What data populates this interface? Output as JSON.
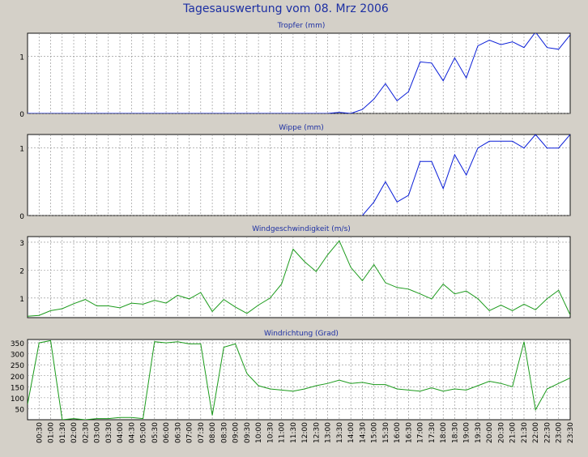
{
  "page_title": "Tagesauswertung vom 08. Mrz 2006",
  "colors": {
    "background": "#d4d0c8",
    "title_text": "#1c2fa3",
    "plot_background": "#ffffff",
    "blue_series": "#0a1ed8",
    "green_series": "#1a9a1a",
    "grid": "#8a8a8a",
    "frame": "#111111"
  },
  "x_time_labels": [
    "00:30",
    "01:00",
    "01:30",
    "02:00",
    "02:30",
    "03:00",
    "03:30",
    "04:00",
    "04:30",
    "05:00",
    "05:30",
    "06:00",
    "06:30",
    "07:00",
    "07:30",
    "08:00",
    "08:30",
    "09:00",
    "09:30",
    "10:00",
    "10:30",
    "11:00",
    "11:30",
    "12:00",
    "12:30",
    "13:00",
    "13:30",
    "14:00",
    "14:30",
    "15:00",
    "15:30",
    "16:00",
    "16:30",
    "17:00",
    "17:30",
    "18:00",
    "18:30",
    "19:00",
    "19:30",
    "20:00",
    "20:30",
    "21:00",
    "21:30",
    "22:00",
    "22:30",
    "23:00",
    "23:30"
  ],
  "chart_data": [
    {
      "type": "line",
      "title": "Tropfer (mm)",
      "color": "#0a1ed8",
      "ylim": [
        0,
        1.4
      ],
      "yticks": [
        0,
        1
      ],
      "x": [
        "00:00",
        "00:30",
        "01:00",
        "01:30",
        "02:00",
        "02:30",
        "03:00",
        "03:30",
        "04:00",
        "04:30",
        "05:00",
        "05:30",
        "06:00",
        "06:30",
        "07:00",
        "07:30",
        "08:00",
        "08:30",
        "09:00",
        "09:30",
        "10:00",
        "10:30",
        "11:00",
        "11:30",
        "12:00",
        "12:30",
        "13:00",
        "13:30",
        "14:00",
        "14:30",
        "15:00",
        "15:30",
        "16:00",
        "16:30",
        "17:00",
        "17:30",
        "18:00",
        "18:30",
        "19:00",
        "19:30",
        "20:00",
        "20:30",
        "21:00",
        "21:30",
        "22:00",
        "22:30",
        "23:00",
        "23:30"
      ],
      "values": [
        0,
        0,
        0,
        0,
        0,
        0,
        0,
        0,
        0,
        0,
        0,
        0,
        0,
        0,
        0,
        0,
        0,
        0,
        0,
        0,
        0,
        0,
        0,
        0,
        0,
        0,
        0,
        0.02,
        0,
        0.07,
        0.25,
        0.52,
        0.22,
        0.38,
        0.9,
        0.88,
        0.57,
        0.97,
        0.62,
        1.18,
        1.28,
        1.2,
        1.25,
        1.15,
        1.42,
        1.15,
        1.12,
        1.37
      ]
    },
    {
      "type": "line",
      "title": "Wippe (mm)",
      "color": "#0a1ed8",
      "ylim": [
        0,
        1.2
      ],
      "yticks": [
        0,
        1
      ],
      "x": [
        "00:00",
        "00:30",
        "01:00",
        "01:30",
        "02:00",
        "02:30",
        "03:00",
        "03:30",
        "04:00",
        "04:30",
        "05:00",
        "05:30",
        "06:00",
        "06:30",
        "07:00",
        "07:30",
        "08:00",
        "08:30",
        "09:00",
        "09:30",
        "10:00",
        "10:30",
        "11:00",
        "11:30",
        "12:00",
        "12:30",
        "13:00",
        "13:30",
        "14:00",
        "14:30",
        "15:00",
        "15:30",
        "16:00",
        "16:30",
        "17:00",
        "17:30",
        "18:00",
        "18:30",
        "19:00",
        "19:30",
        "20:00",
        "20:30",
        "21:00",
        "21:30",
        "22:00",
        "22:30",
        "23:00",
        "23:30"
      ],
      "values": [
        null,
        null,
        null,
        null,
        null,
        null,
        null,
        null,
        null,
        null,
        null,
        null,
        null,
        null,
        null,
        null,
        null,
        null,
        null,
        null,
        null,
        null,
        null,
        null,
        null,
        null,
        null,
        null,
        null,
        0,
        0.2,
        0.5,
        0.2,
        0.3,
        0.8,
        0.8,
        0.4,
        0.9,
        0.6,
        1.0,
        1.1,
        1.1,
        1.1,
        1.0,
        1.2,
        1.0,
        1.0,
        1.2
      ]
    },
    {
      "type": "line",
      "title": "Windgeschwindigkeit (m/s)",
      "color": "#1a9a1a",
      "ylim": [
        0.3,
        3.2
      ],
      "yticks": [
        1,
        2,
        3
      ],
      "x": [
        "00:00",
        "00:30",
        "01:00",
        "01:30",
        "02:00",
        "02:30",
        "03:00",
        "03:30",
        "04:00",
        "04:30",
        "05:00",
        "05:30",
        "06:00",
        "06:30",
        "07:00",
        "07:30",
        "08:00",
        "08:30",
        "09:00",
        "09:30",
        "10:00",
        "10:30",
        "11:00",
        "11:30",
        "12:00",
        "12:30",
        "13:00",
        "13:30",
        "14:00",
        "14:30",
        "15:00",
        "15:30",
        "16:00",
        "16:30",
        "17:00",
        "17:30",
        "18:00",
        "18:30",
        "19:00",
        "19:30",
        "20:00",
        "20:30",
        "21:00",
        "21:30",
        "22:00",
        "22:30",
        "23:00",
        "23:30"
      ],
      "values": [
        0.35,
        0.38,
        0.55,
        0.62,
        0.8,
        0.95,
        0.72,
        0.72,
        0.65,
        0.82,
        0.78,
        0.92,
        0.82,
        1.1,
        0.97,
        1.2,
        0.52,
        0.95,
        0.68,
        0.45,
        0.75,
        1.0,
        1.5,
        2.75,
        2.3,
        1.95,
        2.55,
        3.05,
        2.1,
        1.62,
        2.2,
        1.55,
        1.38,
        1.32,
        1.15,
        0.97,
        1.5,
        1.15,
        1.25,
        0.98,
        0.55,
        0.75,
        0.55,
        0.78,
        0.58,
        0.98,
        1.28,
        0.4
      ]
    },
    {
      "type": "line",
      "title": "Windrichtung (Grad)",
      "color": "#1a9a1a",
      "ylim": [
        0,
        365
      ],
      "yticks": [
        50,
        100,
        150,
        200,
        250,
        300,
        350
      ],
      "x": [
        "00:00",
        "00:30",
        "01:00",
        "01:30",
        "02:00",
        "02:30",
        "03:00",
        "03:30",
        "04:00",
        "04:30",
        "05:00",
        "05:30",
        "06:00",
        "06:30",
        "07:00",
        "07:30",
        "08:00",
        "08:30",
        "09:00",
        "09:30",
        "10:00",
        "10:30",
        "11:00",
        "11:30",
        "12:00",
        "12:30",
        "13:00",
        "13:30",
        "14:00",
        "14:30",
        "15:00",
        "15:30",
        "16:00",
        "16:30",
        "17:00",
        "17:30",
        "18:00",
        "18:30",
        "19:00",
        "19:30",
        "20:00",
        "20:30",
        "21:00",
        "21:30",
        "22:00",
        "22:30",
        "23:00",
        "23:30"
      ],
      "values": [
        70,
        350,
        360,
        0,
        5,
        0,
        5,
        5,
        10,
        10,
        5,
        355,
        350,
        355,
        345,
        345,
        20,
        330,
        345,
        210,
        155,
        140,
        135,
        130,
        140,
        155,
        165,
        180,
        165,
        170,
        160,
        160,
        140,
        135,
        130,
        145,
        130,
        140,
        135,
        155,
        175,
        165,
        150,
        355,
        45,
        140,
        165,
        190
      ]
    }
  ]
}
